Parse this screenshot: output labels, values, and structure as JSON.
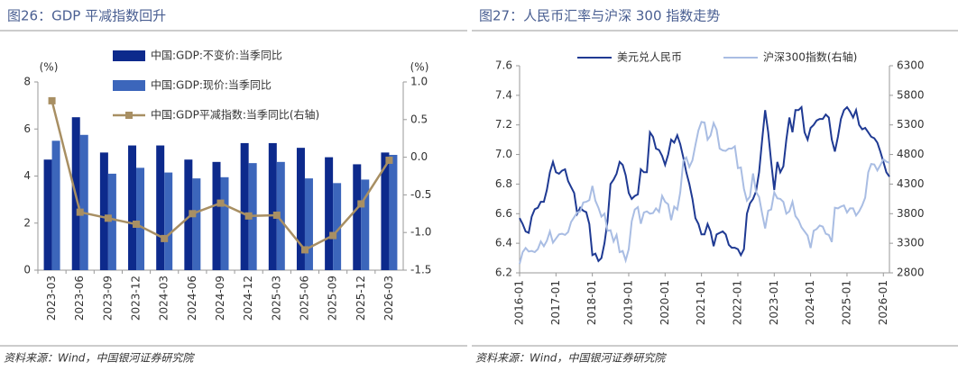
{
  "chart_data": [
    {
      "type": "bar-line",
      "title": "图26：GDP 平减指数回升",
      "source": "资料来源：Wind，中国银河证券研究院",
      "y_unit": "(%)",
      "y2_unit": "(%)",
      "categories": [
        "2023-03",
        "2023-06",
        "2023-09",
        "2023-12",
        "2024-03",
        "2024-06",
        "2024-09",
        "2024-12",
        "2025-03",
        "2025-06",
        "2025-09",
        "2025-12",
        "2026-03"
      ],
      "series": [
        {
          "name": "中国:GDP:不变价:当季同比",
          "type": "bar",
          "color": "#0d2a8c",
          "values": [
            4.7,
            6.5,
            5.0,
            5.3,
            5.3,
            4.7,
            4.6,
            5.4,
            5.4,
            5.2,
            4.8,
            4.5,
            5.0
          ]
        },
        {
          "name": "中国:GDP:现价:当季同比",
          "type": "bar",
          "color": "#3c66bb",
          "values": [
            5.5,
            5.75,
            4.1,
            4.35,
            4.15,
            3.9,
            3.95,
            4.55,
            4.6,
            3.9,
            3.7,
            3.85,
            4.9
          ]
        },
        {
          "name": "中国:GDP平减指数:当季同比(右轴)",
          "type": "line",
          "axis": "y2",
          "color": "#a88f63",
          "values": [
            0.75,
            -0.73,
            -0.81,
            -0.89,
            -1.08,
            -0.75,
            -0.61,
            -0.78,
            -0.77,
            -1.23,
            -1.04,
            -0.62,
            -0.04
          ]
        }
      ],
      "ylim": [
        0,
        8
      ],
      "yticks": [
        0,
        2,
        4,
        6,
        8
      ],
      "y2lim": [
        -1.5,
        1.0
      ],
      "y2ticks": [
        -1.5,
        {
          "value": -1,
          "label": "-1.0"
        },
        -0.5,
        {
          "value": 0,
          "label": "0.0"
        },
        0.5,
        {
          "value": 1,
          "label": "1.0"
        }
      ]
    },
    {
      "type": "line",
      "title": "图27：人民币汇率与沪深 300 指数走势",
      "source": "资料来源：Wind，中国银河证券研究院",
      "x": [
        "2016-01",
        "2016-02",
        "2016-03",
        "2016-04",
        "2016-05",
        "2016-06",
        "2016-07",
        "2016-08",
        "2016-09",
        "2016-10",
        "2016-11",
        "2016-12",
        "2017-01",
        "2017-02",
        "2017-03",
        "2017-04",
        "2017-05",
        "2017-06",
        "2017-07",
        "2017-08",
        "2017-09",
        "2017-10",
        "2017-11",
        "2017-12",
        "2018-01",
        "2018-02",
        "2018-03",
        "2018-04",
        "2018-05",
        "2018-06",
        "2018-07",
        "2018-08",
        "2018-09",
        "2018-10",
        "2018-11",
        "2018-12",
        "2019-01",
        "2019-02",
        "2019-03",
        "2019-04",
        "2019-05",
        "2019-06",
        "2019-07",
        "2019-08",
        "2019-09",
        "2019-10",
        "2019-11",
        "2019-12",
        "2020-01",
        "2020-02",
        "2020-03",
        "2020-04",
        "2020-05",
        "2020-06",
        "2020-07",
        "2020-08",
        "2020-09",
        "2020-10",
        "2020-11",
        "2020-12",
        "2021-01",
        "2021-02",
        "2021-03",
        "2021-04",
        "2021-05",
        "2021-06",
        "2021-07",
        "2021-08",
        "2021-09",
        "2021-10",
        "2021-11",
        "2021-12",
        "2022-01",
        "2022-02",
        "2022-03",
        "2022-04",
        "2022-05",
        "2022-06",
        "2022-07",
        "2022-08",
        "2022-09",
        "2022-10",
        "2022-11",
        "2022-12",
        "2023-01",
        "2023-02",
        "2023-03",
        "2023-04",
        "2023-05",
        "2023-06",
        "2023-07",
        "2023-08",
        "2023-09",
        "2023-10",
        "2023-11",
        "2023-12",
        "2024-01",
        "2024-02",
        "2024-03",
        "2024-04",
        "2024-05",
        "2024-06",
        "2024-07",
        "2024-08",
        "2024-09",
        "2024-10",
        "2024-11",
        "2024-12",
        "2025-01",
        "2025-02",
        "2025-03",
        "2025-04",
        "2025-05",
        "2025-06",
        "2025-07",
        "2025-08",
        "2025-09",
        "2025-10",
        "2025-11",
        "2025-12",
        "2026-01",
        "2026-02",
        "2026-03"
      ],
      "series": [
        {
          "name": "美元兑人民币",
          "color": "#1f3a93",
          "values": [
            6.57,
            6.53,
            6.48,
            6.47,
            6.58,
            6.63,
            6.64,
            6.68,
            6.68,
            6.76,
            6.88,
            6.95,
            6.88,
            6.87,
            6.89,
            6.9,
            6.82,
            6.78,
            6.74,
            6.6,
            6.64,
            6.62,
            6.61,
            6.53,
            6.32,
            6.33,
            6.28,
            6.3,
            6.4,
            6.55,
            6.8,
            6.83,
            6.87,
            6.95,
            6.93,
            6.86,
            6.74,
            6.7,
            6.72,
            6.73,
            6.9,
            6.88,
            6.88,
            7.15,
            7.12,
            7.04,
            7.03,
            6.99,
            6.93,
            7.0,
            7.1,
            7.08,
            7.13,
            7.07,
            6.98,
            6.88,
            6.8,
            6.7,
            6.57,
            6.53,
            6.46,
            6.46,
            6.53,
            6.48,
            6.38,
            6.46,
            6.47,
            6.48,
            6.46,
            6.39,
            6.37,
            6.37,
            6.36,
            6.32,
            6.36,
            6.6,
            6.67,
            6.7,
            6.75,
            6.88,
            7.1,
            7.3,
            7.15,
            6.95,
            6.76,
            6.95,
            6.88,
            6.92,
            7.1,
            7.25,
            7.15,
            7.3,
            7.3,
            7.32,
            7.15,
            7.1,
            7.18,
            7.2,
            7.23,
            7.24,
            7.24,
            7.27,
            7.25,
            7.1,
            7.02,
            7.12,
            7.24,
            7.3,
            7.32,
            7.29,
            7.25,
            7.3,
            7.2,
            7.17,
            7.18,
            7.15,
            7.12,
            7.11,
            7.08,
            7.02,
            6.95,
            6.88,
            6.85
          ]
        },
        {
          "name": "沪深300指数(右轴)",
          "axis": "y2",
          "color": "#a9bde3",
          "values": [
            2950,
            3150,
            3220,
            3160,
            3170,
            3150,
            3200,
            3330,
            3250,
            3340,
            3500,
            3310,
            3380,
            3450,
            3460,
            3440,
            3490,
            3660,
            3740,
            3820,
            3840,
            3990,
            4000,
            4030,
            4270,
            4020,
            3900,
            3750,
            3800,
            3510,
            3520,
            3330,
            3440,
            3150,
            3170,
            3010,
            3200,
            3670,
            3870,
            3910,
            3630,
            3820,
            3840,
            3800,
            3810,
            3890,
            3830,
            4100,
            4000,
            3960,
            3690,
            3920,
            3870,
            4160,
            4690,
            4750,
            4590,
            4700,
            4960,
            5210,
            5350,
            5340,
            5050,
            5120,
            5330,
            5220,
            4900,
            4870,
            4860,
            4900,
            4900,
            4940,
            4570,
            4580,
            4220,
            4020,
            4090,
            4480,
            4170,
            4080,
            3800,
            3550,
            3850,
            3870,
            4160,
            4060,
            4050,
            4000,
            3800,
            3840,
            4000,
            3760,
            3690,
            3570,
            3500,
            3430,
            3220,
            3510,
            3540,
            3600,
            3580,
            3460,
            3440,
            3320,
            3900,
            3890,
            3920,
            3940,
            3820,
            3890,
            3890,
            3770,
            3840,
            3940,
            4070,
            4500,
            4640,
            4630,
            4530,
            4620,
            4720,
            4680,
            4660
          ]
        }
      ],
      "xlim": [
        "2016-01",
        "2026-03"
      ],
      "xticks": [
        "2016-01",
        "2017-01",
        "2018-01",
        "2019-01",
        "2020-01",
        "2021-01",
        "2022-01",
        "2023-01",
        "2024-01",
        "2025-01",
        "2026-01"
      ],
      "ylim": [
        6.2,
        7.6
      ],
      "yticks": [
        6.2,
        6.4,
        6.6,
        6.8,
        {
          "value": 7,
          "label": "7.0"
        },
        7.2,
        7.4,
        7.6
      ],
      "y2lim": [
        2800,
        6300
      ],
      "y2ticks": [
        2800,
        3300,
        3800,
        4300,
        4800,
        5300,
        5800,
        6300
      ]
    }
  ]
}
